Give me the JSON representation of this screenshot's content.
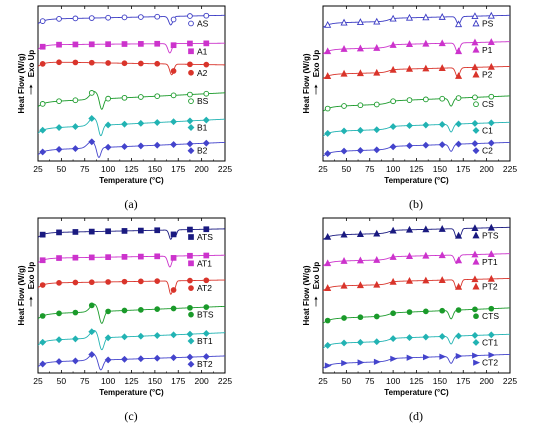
{
  "chart_data": [
    {
      "type": "line",
      "panel_label": "(a)",
      "xlabel": "Temperature (°C)",
      "ylabel": "Heat Flow (W/g)",
      "ylabel2": "Exo Up",
      "xlim": [
        25,
        225
      ],
      "xticks": [
        25,
        50,
        75,
        100,
        125,
        150,
        175,
        200,
        225
      ],
      "series": [
        {
          "name": "AS",
          "color": "#3b3bc4",
          "marker": "circle",
          "open": true,
          "baseline": 0.06,
          "drift": 0.025,
          "events": [
            {
              "kind": "endo",
              "center": 167,
              "width": 3,
              "depth": 0.055
            }
          ]
        },
        {
          "name": "A1",
          "color": "#cc33cc",
          "marker": "square",
          "open": false,
          "baseline": 0.24,
          "drift": 0.01,
          "events": [
            {
              "kind": "endo",
              "center": 166,
              "width": 3,
              "depth": 0.06
            }
          ]
        },
        {
          "name": "A2",
          "color": "#d9342b",
          "marker": "circle",
          "open": false,
          "baseline": 0.38,
          "drift": -0.02,
          "events": [
            {
              "kind": "endo",
              "center": 168,
              "width": 3,
              "depth": 0.07
            }
          ]
        },
        {
          "name": "BS",
          "color": "#1a9a2a",
          "marker": "circle",
          "open": true,
          "baseline": 0.56,
          "drift": 0.06,
          "events": [
            {
              "kind": "exo",
              "center": 85,
              "width": 6,
              "depth": 0.05
            },
            {
              "kind": "endo",
              "center": 93,
              "width": 3,
              "depth": 0.075
            }
          ]
        },
        {
          "name": "B1",
          "color": "#22b3b3",
          "marker": "diamond",
          "open": false,
          "baseline": 0.73,
          "drift": 0.06,
          "events": [
            {
              "kind": "exo",
              "center": 84,
              "width": 6,
              "depth": 0.05
            },
            {
              "kind": "endo",
              "center": 92,
              "width": 3,
              "depth": 0.075
            }
          ]
        },
        {
          "name": "B2",
          "color": "#4444cc",
          "marker": "diamond",
          "open": false,
          "baseline": 0.88,
          "drift": 0.05,
          "events": [
            {
              "kind": "exo",
              "center": 82,
              "width": 6,
              "depth": 0.04
            },
            {
              "kind": "endo",
              "center": 90,
              "width": 3,
              "depth": 0.07
            }
          ]
        }
      ]
    },
    {
      "type": "line",
      "panel_label": "(b)",
      "xlabel": "Temperature (°C)",
      "ylabel": "Heat Flow (W/g)",
      "ylabel2": "Exo Up",
      "xlim": [
        25,
        225
      ],
      "xticks": [
        25,
        50,
        75,
        100,
        125,
        150,
        175,
        200,
        225
      ],
      "series": [
        {
          "name": "PS",
          "color": "#3b3bc4",
          "marker": "triangle",
          "open": true,
          "baseline": 0.08,
          "drift": 0.03,
          "events": [
            {
              "kind": "step",
              "center": 95,
              "width": 3,
              "depth": 0.02
            },
            {
              "kind": "endo",
              "center": 170,
              "width": 3,
              "depth": 0.05
            }
          ]
        },
        {
          "name": "P1",
          "color": "#cc33cc",
          "marker": "triangle",
          "open": false,
          "baseline": 0.25,
          "drift": 0.03,
          "events": [
            {
              "kind": "step",
              "center": 95,
              "width": 3,
              "depth": 0.02
            },
            {
              "kind": "endo",
              "center": 169,
              "width": 3,
              "depth": 0.06
            }
          ]
        },
        {
          "name": "P2",
          "color": "#d9342b",
          "marker": "triangle",
          "open": false,
          "baseline": 0.41,
          "drift": 0.03,
          "events": [
            {
              "kind": "step",
              "center": 95,
              "width": 3,
              "depth": 0.02
            },
            {
              "kind": "endo",
              "center": 169,
              "width": 3,
              "depth": 0.06
            }
          ]
        },
        {
          "name": "CS",
          "color": "#1a9a2a",
          "marker": "circle",
          "open": true,
          "baseline": 0.6,
          "drift": 0.05,
          "events": [
            {
              "kind": "step",
              "center": 95,
              "width": 3,
              "depth": 0.02
            },
            {
              "kind": "endo",
              "center": 162,
              "width": 3,
              "depth": 0.05
            }
          ]
        },
        {
          "name": "C1",
          "color": "#22b3b3",
          "marker": "diamond",
          "open": false,
          "baseline": 0.77,
          "drift": 0.04,
          "events": [
            {
              "kind": "step",
              "center": 95,
              "width": 3,
              "depth": 0.02
            },
            {
              "kind": "endo",
              "center": 162,
              "width": 3,
              "depth": 0.05
            }
          ]
        },
        {
          "name": "C2",
          "color": "#4444cc",
          "marker": "diamond",
          "open": false,
          "baseline": 0.9,
          "drift": 0.04,
          "events": [
            {
              "kind": "step",
              "center": 95,
              "width": 3,
              "depth": 0.02
            },
            {
              "kind": "endo",
              "center": 162,
              "width": 3,
              "depth": 0.045
            }
          ]
        }
      ]
    },
    {
      "type": "line",
      "panel_label": "(c)",
      "xlabel": "Temperature (°C)",
      "ylabel": "Heat Flow (W/g)",
      "ylabel2": "Exo Up",
      "xlim": [
        25,
        225
      ],
      "xticks": [
        25,
        50,
        75,
        100,
        125,
        150,
        175,
        200,
        225
      ],
      "series": [
        {
          "name": "ATS",
          "color": "#1a1a80",
          "marker": "square",
          "open": false,
          "baseline": 0.07,
          "drift": 0.025,
          "events": [
            {
              "kind": "endo",
              "center": 167,
              "width": 2.5,
              "depth": 0.06
            },
            {
              "kind": "endo",
              "center": 172,
              "width": 2,
              "depth": 0.04
            }
          ]
        },
        {
          "name": "AT1",
          "color": "#cc33cc",
          "marker": "square",
          "open": false,
          "baseline": 0.24,
          "drift": 0.02,
          "events": [
            {
              "kind": "endo",
              "center": 166,
              "width": 3,
              "depth": 0.07
            }
          ]
        },
        {
          "name": "AT2",
          "color": "#d9342b",
          "marker": "circle",
          "open": false,
          "baseline": 0.4,
          "drift": 0.02,
          "events": [
            {
              "kind": "endo",
              "center": 167,
              "width": 2.5,
              "depth": 0.085
            },
            {
              "kind": "endo",
              "center": 171,
              "width": 2,
              "depth": 0.05
            }
          ]
        },
        {
          "name": "BTS",
          "color": "#1a9a2a",
          "marker": "circle",
          "open": false,
          "baseline": 0.57,
          "drift": 0.05,
          "events": [
            {
              "kind": "exo",
              "center": 85,
              "width": 6,
              "depth": 0.05
            },
            {
              "kind": "endo",
              "center": 93,
              "width": 3.5,
              "depth": 0.085
            }
          ]
        },
        {
          "name": "BT1",
          "color": "#22b3b3",
          "marker": "diamond",
          "open": false,
          "baseline": 0.74,
          "drift": 0.05,
          "events": [
            {
              "kind": "exo",
              "center": 85,
              "width": 6,
              "depth": 0.05
            },
            {
              "kind": "endo",
              "center": 93,
              "width": 3.5,
              "depth": 0.085
            }
          ]
        },
        {
          "name": "BT2",
          "color": "#4444cc",
          "marker": "diamond",
          "open": false,
          "baseline": 0.89,
          "drift": 0.04,
          "events": [
            {
              "kind": "exo",
              "center": 84,
              "width": 6,
              "depth": 0.04
            },
            {
              "kind": "endo",
              "center": 92,
              "width": 3.5,
              "depth": 0.07
            }
          ]
        }
      ]
    },
    {
      "type": "line",
      "panel_label": "(d)",
      "xlabel": "Temperature (°C)",
      "ylabel": "Heat Flow (W/g)",
      "ylabel2": "Exo Up",
      "xlim": [
        25,
        225
      ],
      "xticks": [
        25,
        50,
        75,
        100,
        125,
        150,
        175,
        200,
        225
      ],
      "series": [
        {
          "name": "PTS",
          "color": "#1a1a80",
          "marker": "triangle",
          "open": false,
          "baseline": 0.08,
          "drift": 0.03,
          "events": [
            {
              "kind": "step",
              "center": 95,
              "width": 3,
              "depth": 0.02
            },
            {
              "kind": "endo",
              "center": 168,
              "width": 2.5,
              "depth": 0.06
            },
            {
              "kind": "endo",
              "center": 172,
              "width": 2,
              "depth": 0.04
            }
          ]
        },
        {
          "name": "PT1",
          "color": "#cc33cc",
          "marker": "triangle",
          "open": false,
          "baseline": 0.25,
          "drift": 0.03,
          "events": [
            {
              "kind": "step",
              "center": 95,
              "width": 3,
              "depth": 0.02
            },
            {
              "kind": "endo",
              "center": 168,
              "width": 3,
              "depth": 0.055
            }
          ]
        },
        {
          "name": "PT2",
          "color": "#d9342b",
          "marker": "triangle",
          "open": false,
          "baseline": 0.41,
          "drift": 0.03,
          "events": [
            {
              "kind": "step",
              "center": 95,
              "width": 3,
              "depth": 0.02
            },
            {
              "kind": "endo",
              "center": 168,
              "width": 2.5,
              "depth": 0.06
            },
            {
              "kind": "endo",
              "center": 172,
              "width": 2,
              "depth": 0.04
            }
          ]
        },
        {
          "name": "CTS",
          "color": "#1a9a2a",
          "marker": "circle",
          "open": false,
          "baseline": 0.6,
          "drift": 0.05,
          "events": [
            {
              "kind": "step",
              "center": 95,
              "width": 3,
              "depth": 0.02
            },
            {
              "kind": "endo",
              "center": 162,
              "width": 3,
              "depth": 0.055
            }
          ]
        },
        {
          "name": "CT1",
          "color": "#22b3b3",
          "marker": "diamond",
          "open": false,
          "baseline": 0.77,
          "drift": 0.04,
          "events": [
            {
              "kind": "step",
              "center": 95,
              "width": 3,
              "depth": 0.02
            },
            {
              "kind": "endo",
              "center": 162,
              "width": 3,
              "depth": 0.05
            }
          ]
        },
        {
          "name": "CT2",
          "color": "#4444cc",
          "marker": "arrow-right",
          "open": false,
          "baseline": 0.9,
          "drift": 0.04,
          "events": [
            {
              "kind": "step",
              "center": 95,
              "width": 3,
              "depth": 0.02
            },
            {
              "kind": "endo",
              "center": 162,
              "width": 3,
              "depth": 0.045
            }
          ]
        }
      ]
    }
  ]
}
